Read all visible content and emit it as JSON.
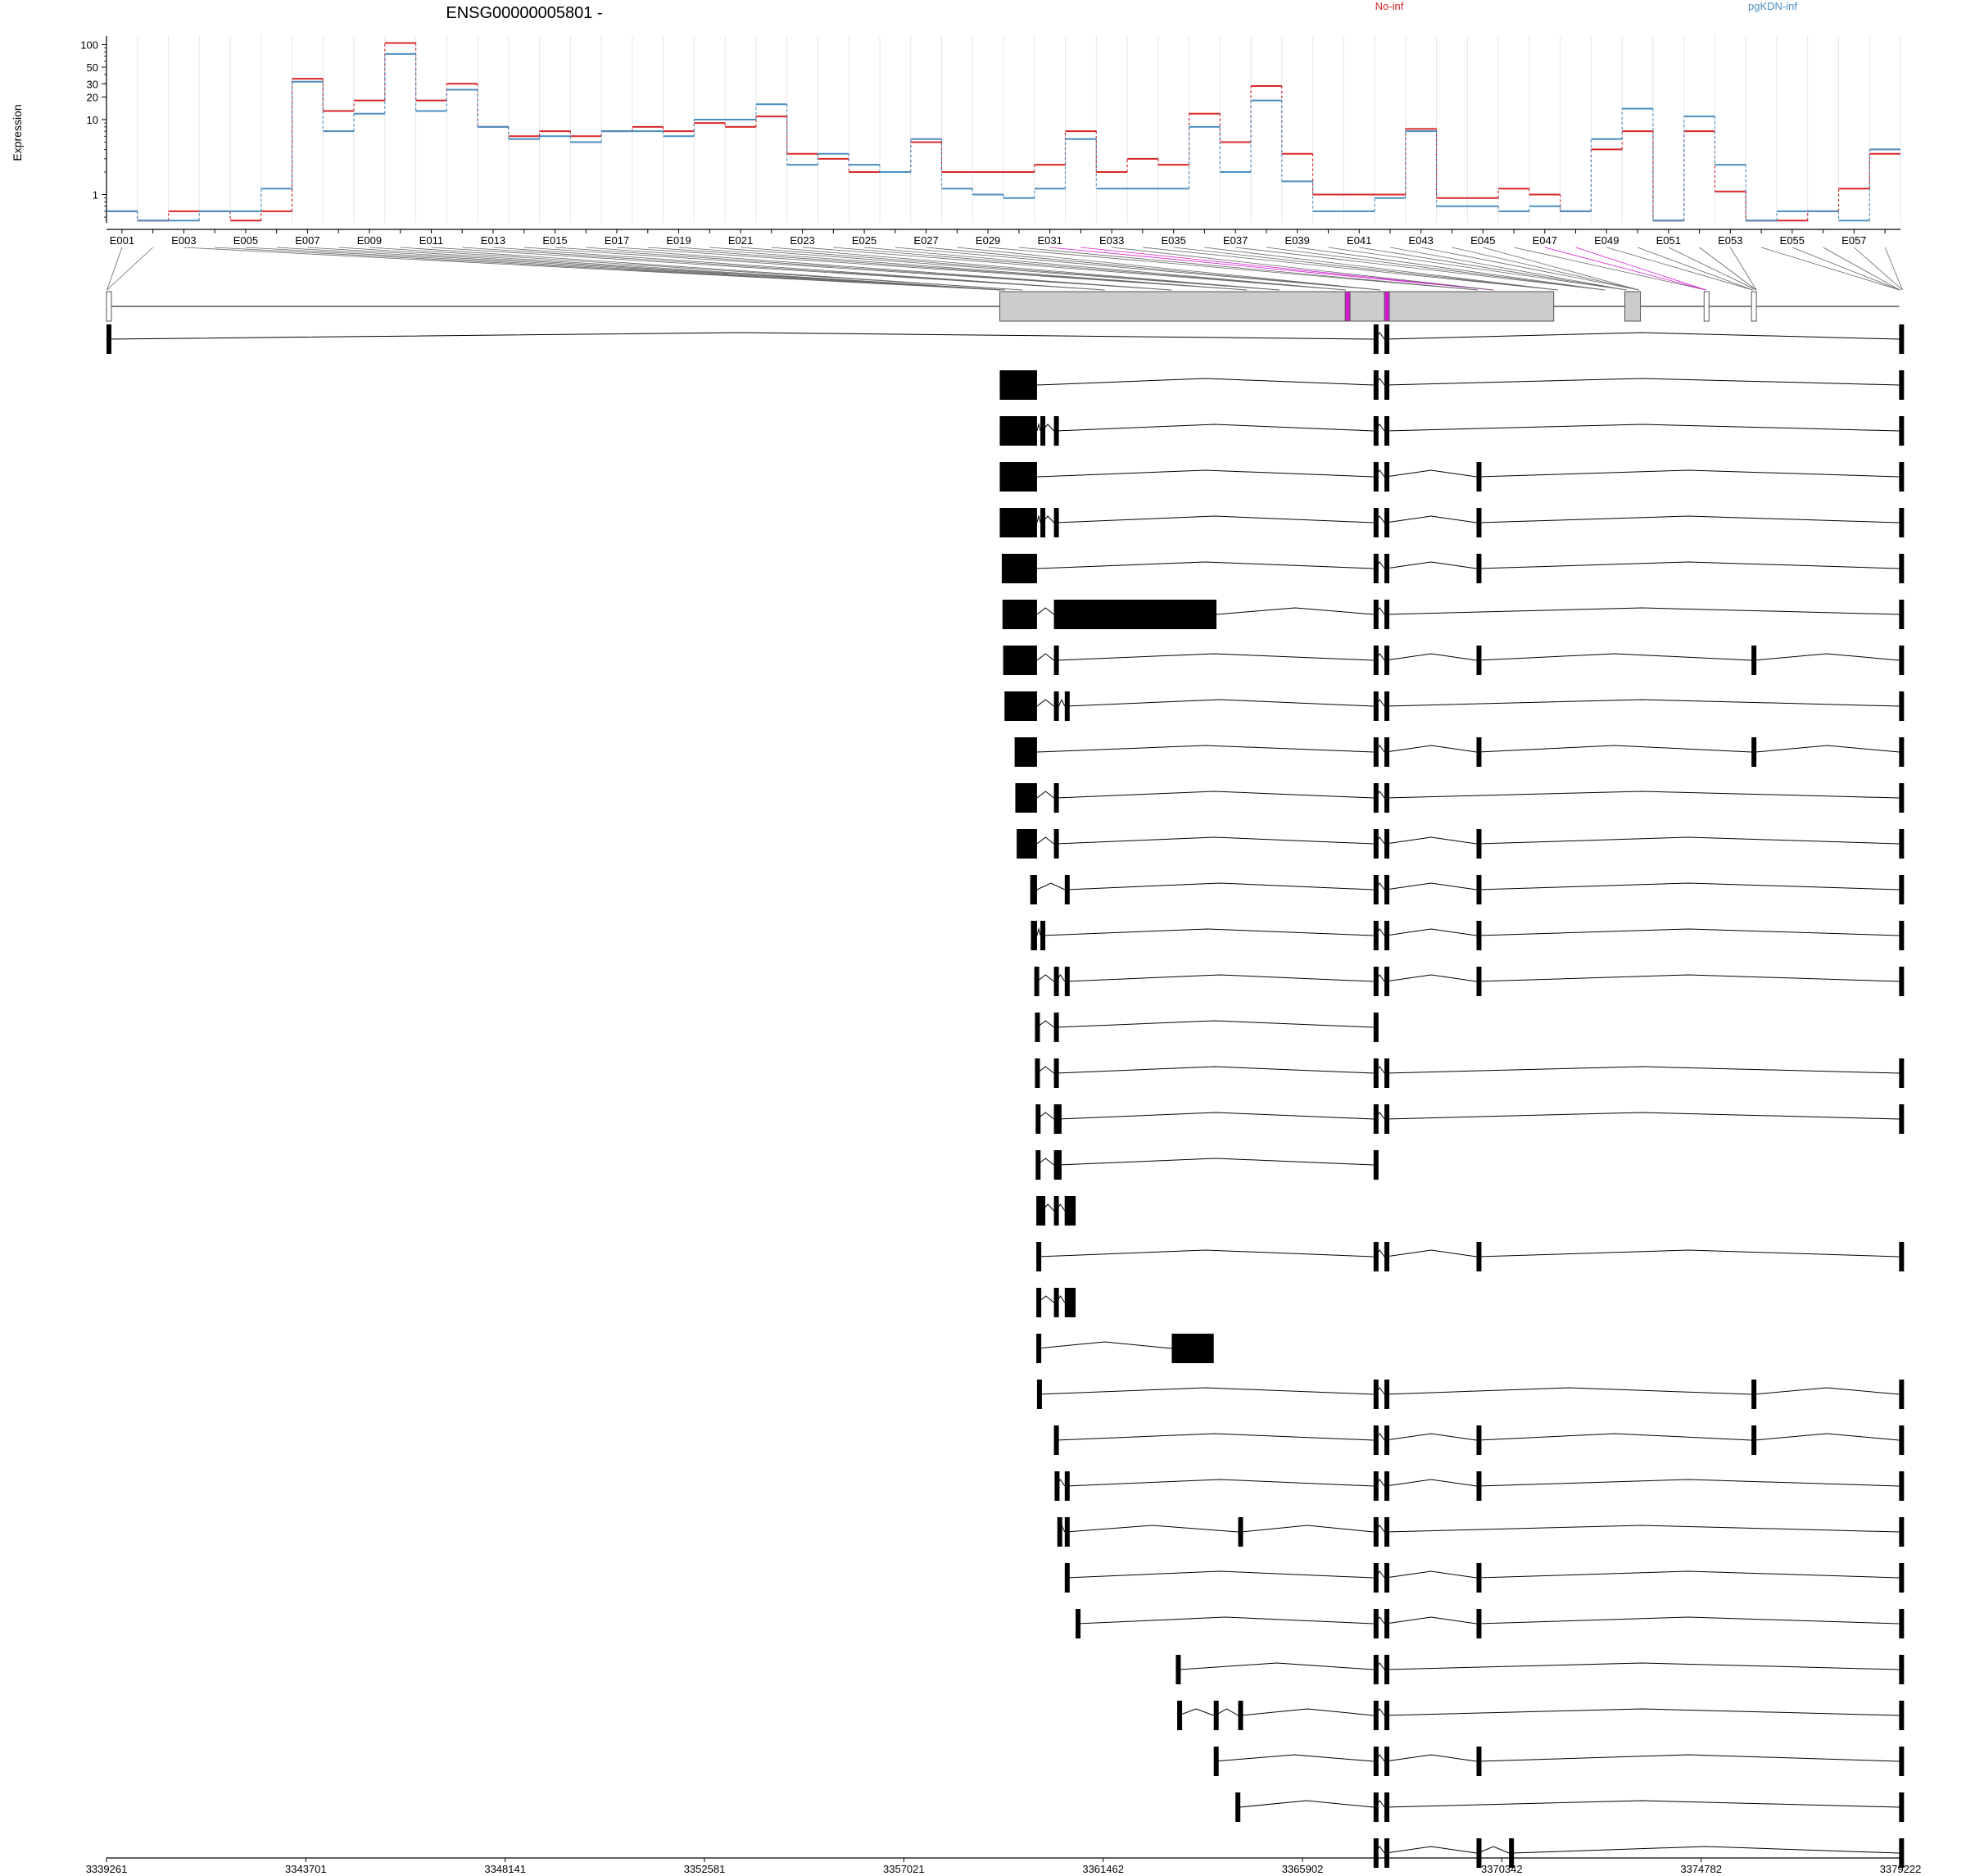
{
  "chart_data": {
    "type": "line",
    "title": "ENSG00000005801 -",
    "ylabel": "Expression",
    "yscale": "log",
    "yticks": [
      "1",
      "10",
      "20",
      "30",
      "50",
      "100"
    ],
    "exon_labels": [
      "E001",
      "E003",
      "E005",
      "E007",
      "E009",
      "E011",
      "E013",
      "E015",
      "E017",
      "E019",
      "E021",
      "E023",
      "E025",
      "E027",
      "E029",
      "E031",
      "E033",
      "E035",
      "E037",
      "E039",
      "E041",
      "E043",
      "E045",
      "E047",
      "E049",
      "E051",
      "E053",
      "E055",
      "E057"
    ],
    "series": [
      {
        "name": "No-inf",
        "color": "#d62728",
        "values": [
          0.6,
          0.45,
          0.6,
          0.6,
          0.45,
          0.6,
          35,
          13,
          18,
          105,
          18,
          30,
          8,
          6,
          7,
          6,
          7,
          8,
          7,
          9,
          8,
          11,
          3.5,
          3,
          2,
          2,
          5,
          2,
          2,
          2,
          2.5,
          7,
          2,
          3,
          2.5,
          12,
          5,
          28,
          3.5,
          1,
          1,
          1,
          7.5,
          0.9,
          0.9,
          1.2,
          1,
          0.6,
          4,
          7,
          0.45,
          7,
          1.1,
          0.45,
          0.45,
          0.6,
          1.2,
          3.5
        ]
      },
      {
        "name": "pgKDN-inf",
        "color": "#4a8fc1",
        "values": [
          0.6,
          0.45,
          0.45,
          0.6,
          0.6,
          1.2,
          32,
          7,
          12,
          75,
          13,
          25,
          8,
          5.5,
          6,
          5,
          7,
          7,
          6,
          10,
          10,
          16,
          2.5,
          3.5,
          2.5,
          2,
          5.5,
          1.2,
          1,
          0.9,
          1.2,
          5.5,
          1.2,
          1.2,
          1.2,
          8,
          2,
          18,
          1.5,
          0.6,
          0.6,
          0.9,
          7,
          0.7,
          0.7,
          0.6,
          0.7,
          0.6,
          5.5,
          14,
          0.45,
          11,
          2.5,
          0.45,
          0.6,
          0.6,
          0.45,
          4
        ]
      }
    ],
    "genome_ticks": [
      "3339261",
      "3343701",
      "3348141",
      "3352581",
      "3357021",
      "3361462",
      "3365902",
      "3370342",
      "3374782",
      "3379222"
    ],
    "colors": {
      "no_inf": "#d62728",
      "pgkdn_inf": "#4a8fc1",
      "highlight": "#d21ad2",
      "exon_fill": "#cccccc"
    },
    "gene_model": {
      "exons": [
        [
          1,
          2.3
        ],
        [
          1320,
          1322
        ],
        [
          1326,
          1330
        ],
        [
          1332,
          1375
        ],
        [
          1472,
          1478
        ],
        [
          1573,
          1574
        ],
        [
          1680,
          1690
        ],
        [
          1712,
          1754
        ],
        [
          1826,
          1836
        ],
        [
          1872,
          1892
        ],
        [
          2024,
          2028
        ],
        [
          2048,
          2050
        ],
        [
          2138,
          2150
        ],
        [
          2212,
          2215
        ],
        [
          2243,
          2248
        ],
        [
          2262,
          2266
        ],
        [
          2360,
          2366
        ],
        [
          2430,
          2434
        ],
        [
          2436,
          2438
        ],
        [
          2648,
          2650
        ],
        [
          2650,
          2656
        ]
      ],
      "gray": [
        [
          1320,
          2138
        ],
        [
          2243,
          2266
        ]
      ],
      "white": [
        [
          1,
          2.3
        ],
        [
          2360,
          2366
        ],
        [
          2430,
          2434
        ]
      ],
      "magenta": [
        [
          1830,
          1836
        ],
        [
          1888,
          1892
        ]
      ]
    },
    "transcripts": [
      [
        [
          1,
          2.3
        ],
        [
          1872,
          1874
        ],
        [
          1888,
          1890
        ],
        [
          2648,
          2650
        ]
      ],
      [
        [
          1320,
          1375
        ],
        [
          1872,
          1874
        ],
        [
          1888,
          1890
        ],
        [
          2648,
          2650
        ]
      ],
      [
        [
          1320,
          1375
        ],
        [
          1380,
          1382
        ],
        [
          1400,
          1403
        ],
        [
          1872,
          1874
        ],
        [
          1888,
          1890
        ],
        [
          2648,
          2650
        ]
      ],
      [
        [
          1320,
          1375
        ],
        [
          1872,
          1874
        ],
        [
          1888,
          1890
        ],
        [
          2024,
          2026
        ],
        [
          2648,
          2650
        ]
      ],
      [
        [
          1320,
          1375
        ],
        [
          1380,
          1382
        ],
        [
          1400,
          1403
        ],
        [
          1872,
          1874
        ],
        [
          1888,
          1890
        ],
        [
          2024,
          2026
        ],
        [
          2648,
          2650
        ]
      ],
      [
        [
          1323,
          1375
        ],
        [
          1872,
          1874
        ],
        [
          1888,
          1890
        ],
        [
          2024,
          2026
        ],
        [
          2648,
          2650
        ]
      ],
      [
        [
          1324,
          1375
        ],
        [
          1400,
          1640
        ],
        [
          1872,
          1874
        ],
        [
          1888,
          1890
        ],
        [
          2648,
          2650
        ]
      ],
      [
        [
          1325,
          1375
        ],
        [
          1400,
          1403
        ],
        [
          1872,
          1874
        ],
        [
          1888,
          1890
        ],
        [
          2024,
          2026
        ],
        [
          2430,
          2434
        ],
        [
          2648,
          2650
        ]
      ],
      [
        [
          1327,
          1375
        ],
        [
          1400,
          1407
        ],
        [
          1416,
          1418
        ],
        [
          1872,
          1874
        ],
        [
          1888,
          1890
        ],
        [
          2648,
          2650
        ]
      ],
      [
        [
          1342,
          1375
        ],
        [
          1872,
          1874
        ],
        [
          1888,
          1890
        ],
        [
          2024,
          2026
        ],
        [
          2430,
          2436
        ],
        [
          2648,
          2650
        ]
      ],
      [
        [
          1343,
          1375
        ],
        [
          1400,
          1403
        ],
        [
          1872,
          1874
        ],
        [
          1888,
          1890
        ],
        [
          2648,
          2650
        ]
      ],
      [
        [
          1345,
          1375
        ],
        [
          1400,
          1403
        ],
        [
          1872,
          1874
        ],
        [
          1888,
          1890
        ],
        [
          2024,
          2026
        ],
        [
          2648,
          2650
        ]
      ],
      [
        [
          1365,
          1375
        ],
        [
          1416,
          1418
        ],
        [
          1872,
          1874
        ],
        [
          1888,
          1890
        ],
        [
          2024,
          2026
        ],
        [
          2648,
          2650
        ]
      ],
      [
        [
          1366,
          1375
        ],
        [
          1380,
          1382
        ],
        [
          1872,
          1874
        ],
        [
          1888,
          1890
        ],
        [
          2024,
          2026
        ],
        [
          2648,
          2650
        ]
      ],
      [
        [
          1371,
          1375
        ],
        [
          1400,
          1403
        ],
        [
          1416,
          1418
        ],
        [
          1872,
          1874
        ],
        [
          1888,
          1890
        ],
        [
          2024,
          2026
        ],
        [
          2648,
          2650
        ]
      ],
      [
        [
          1372,
          1375
        ],
        [
          1400,
          1403
        ],
        [
          1872,
          1876
        ]
      ],
      [
        [
          1372,
          1375
        ],
        [
          1400,
          1403
        ],
        [
          1872,
          1874
        ],
        [
          1888,
          1890
        ],
        [
          2648,
          2650
        ]
      ],
      [
        [
          1373,
          1375
        ],
        [
          1400,
          1403
        ],
        [
          1404,
          1406
        ],
        [
          1872,
          1874
        ],
        [
          1888,
          1890
        ],
        [
          2648,
          2650
        ]
      ],
      [
        [
          1373,
          1375
        ],
        [
          1400,
          1403
        ],
        [
          1404,
          1406
        ],
        [
          1872,
          1876
        ]
      ],
      [
        [
          1374,
          1376
        ],
        [
          1380,
          1382
        ],
        [
          1400,
          1403
        ],
        [
          1416,
          1432
        ],
        [
          1416,
          1432
        ]
      ],
      [
        [
          1374,
          1376
        ],
        [
          1872,
          1874
        ],
        [
          1888,
          1890
        ],
        [
          2024,
          2026
        ],
        [
          2648,
          2650
        ]
      ],
      [
        [
          1374,
          1376
        ],
        [
          1400,
          1403
        ],
        [
          1416,
          1432
        ]
      ],
      [
        [
          1374,
          1376
        ],
        [
          1574,
          1636
        ]
      ],
      [
        [
          1375,
          1376
        ],
        [
          1872,
          1874
        ],
        [
          1888,
          1890
        ],
        [
          2430,
          2434
        ],
        [
          2648,
          2650
        ]
      ],
      [
        [
          1400,
          1403
        ],
        [
          1872,
          1874
        ],
        [
          1888,
          1890
        ],
        [
          2024,
          2026
        ],
        [
          2430,
          2434
        ],
        [
          2648,
          2650
        ]
      ],
      [
        [
          1401,
          1403
        ],
        [
          1416,
          1418
        ],
        [
          1872,
          1874
        ],
        [
          1888,
          1890
        ],
        [
          2024,
          2026
        ],
        [
          2648,
          2650
        ]
      ],
      [
        [
          1405,
          1407
        ],
        [
          1416,
          1418
        ],
        [
          1672,
          1676
        ],
        [
          1872,
          1874
        ],
        [
          1888,
          1890
        ],
        [
          2648,
          2650
        ]
      ],
      [
        [
          1416,
          1418
        ],
        [
          1872,
          1874
        ],
        [
          1888,
          1890
        ],
        [
          2024,
          2026
        ],
        [
          2648,
          2650
        ]
      ],
      [
        [
          1432,
          1434
        ],
        [
          1872,
          1874
        ],
        [
          1888,
          1890
        ],
        [
          2024,
          2026
        ],
        [
          2648,
          2650
        ]
      ],
      [
        [
          1580,
          1586
        ],
        [
          1872,
          1874
        ],
        [
          1888,
          1890
        ],
        [
          2648,
          2650
        ]
      ],
      [
        [
          1582,
          1584
        ],
        [
          1636,
          1638
        ],
        [
          1672,
          1676
        ],
        [
          1872,
          1874
        ],
        [
          1888,
          1890
        ],
        [
          2648,
          2650
        ]
      ],
      [
        [
          1636,
          1638
        ],
        [
          1872,
          1874
        ],
        [
          1888,
          1890
        ],
        [
          2024,
          2026
        ],
        [
          2648,
          2650
        ]
      ],
      [
        [
          1668,
          1674
        ],
        [
          1872,
          1874
        ],
        [
          1888,
          1890
        ],
        [
          2648,
          2650
        ]
      ],
      [
        [
          1872,
          1874
        ],
        [
          1888,
          1890
        ],
        [
          2024,
          2026
        ],
        [
          2072,
          2076
        ],
        [
          2648,
          2650
        ]
      ]
    ]
  }
}
